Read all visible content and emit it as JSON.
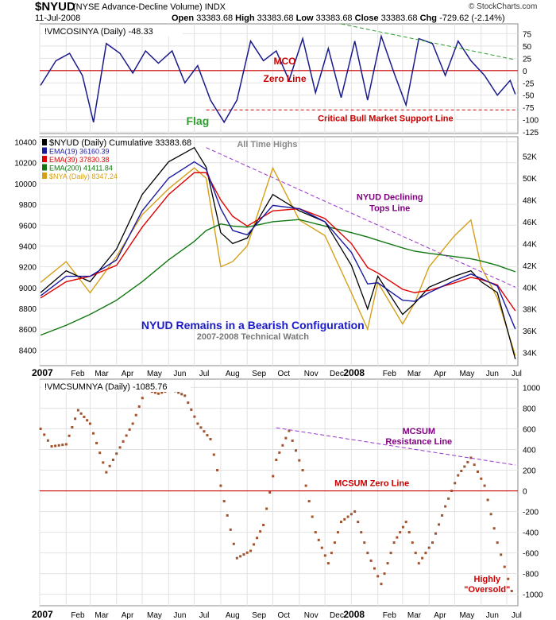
{
  "header": {
    "symbol": "$NYUD",
    "description": "(NYSE Advance-Decline Volume) INDX",
    "date": "11-Jul-2008",
    "open_label": "Open",
    "open": "33383.68",
    "high_label": "High",
    "high": "33383.68",
    "low_label": "Low",
    "low": "33383.68",
    "close_label": "Close",
    "close": "33383.68",
    "chg_label": "Chg",
    "chg": "-729.62 (-2.14%)",
    "credit": "© StockCharts.com"
  },
  "colors": {
    "mco": "#1a1a8c",
    "ema19": "#1a1aa0",
    "ema39": "#e00000",
    "ema200": "#117711",
    "nyud": "#000000",
    "nya": "#d4a017",
    "mcsum": "#a0522d",
    "zero": "#cc0000",
    "trend_green": "#2e9e2e",
    "trend_purple": "#9932cc",
    "annot_red": "#cc0000",
    "annot_blue": "#1a1acc",
    "annot_gray": "#777777"
  },
  "chart_data": [
    {
      "type": "line",
      "panel": "top",
      "legend": "!VMCOSINYA (Daily) -48.33",
      "yticks": [
        75,
        50,
        25,
        0,
        -25,
        -50,
        -75,
        -100,
        -125
      ],
      "ylim": [
        -128,
        95
      ],
      "x": [
        "2007-01-02",
        "2007-01-20",
        "2007-02-05",
        "2007-02-20",
        "2007-03-05",
        "2007-03-20",
        "2007-04-05",
        "2007-04-20",
        "2007-05-05",
        "2007-05-20",
        "2007-06-05",
        "2007-06-20",
        "2007-07-05",
        "2007-07-20",
        "2007-08-05",
        "2007-08-20",
        "2007-09-05",
        "2007-09-20",
        "2007-10-05",
        "2007-10-20",
        "2007-11-05",
        "2007-11-20",
        "2007-12-05",
        "2007-12-20",
        "2008-01-05",
        "2008-01-20",
        "2008-02-05",
        "2008-02-20",
        "2008-03-05",
        "2008-03-20",
        "2008-04-05",
        "2008-04-20",
        "2008-05-05",
        "2008-05-20",
        "2008-06-05",
        "2008-06-20",
        "2008-07-05",
        "2008-07-11"
      ],
      "values": [
        -30,
        20,
        35,
        -10,
        -105,
        55,
        35,
        -5,
        40,
        15,
        40,
        -25,
        10,
        -60,
        -105,
        -60,
        60,
        20,
        40,
        -20,
        65,
        -45,
        45,
        -55,
        60,
        -60,
        70,
        -5,
        -70,
        65,
        55,
        -10,
        60,
        20,
        -10,
        -50,
        -20,
        -48
      ],
      "zero_label": "Zero Line",
      "mco_label": "MCO",
      "support_label": "Critical Bull Market Support Line",
      "support_value": -80,
      "flag_label": "Flag",
      "trendline": {
        "x": [
          "2007-12-20",
          "2008-07-11"
        ],
        "y": [
          95,
          22
        ]
      }
    },
    {
      "type": "line",
      "panel": "middle",
      "title": "NYUD Remains in a Bearish Configuration",
      "subtitle": "2007-2008 Technical Watch",
      "all_time_highs_label": "All Time Highs",
      "declining_tops_label1": "NYUD Declining",
      "declining_tops_label2": "Tops Line",
      "left_yticks": [
        10400,
        10200,
        10000,
        9800,
        9600,
        9400,
        9200,
        9000,
        8800,
        8600,
        8400
      ],
      "left_ylim": [
        8250,
        10450
      ],
      "right_yticks": [
        "52K",
        "50K",
        "48K",
        "46K",
        "44K",
        "42K",
        "40K",
        "38K",
        "36K",
        "34K"
      ],
      "right_values": [
        52000,
        50000,
        48000,
        46000,
        44000,
        42000,
        40000,
        38000,
        36000,
        34000
      ],
      "right_ylim": [
        32800,
        53800
      ],
      "legend": [
        {
          "text": "$NYUD (Daily) Cumulative 33383.68",
          "key": "nyud"
        },
        {
          "text": "EMA(19) 36160.39",
          "key": "ema19"
        },
        {
          "text": "EMA(39) 37830.38",
          "key": "ema39"
        },
        {
          "text": "EMA(200) 41411.84",
          "key": "ema200"
        },
        {
          "text": "$NYA (Daily) 8347.24",
          "key": "nya"
        }
      ],
      "x": [
        "2007-01-02",
        "2007-02-01",
        "2007-03-01",
        "2007-04-01",
        "2007-05-01",
        "2007-06-01",
        "2007-07-01",
        "2007-07-15",
        "2007-08-01",
        "2007-08-15",
        "2007-09-01",
        "2007-10-01",
        "2007-11-01",
        "2007-12-01",
        "2008-01-01",
        "2008-01-20",
        "2008-02-01",
        "2008-03-01",
        "2008-03-15",
        "2008-04-01",
        "2008-05-01",
        "2008-05-20",
        "2008-06-01",
        "2008-06-20",
        "2008-07-11"
      ],
      "series": [
        {
          "name": "$NYUD (Daily) Cumulative",
          "key": "nyud",
          "axis": "right",
          "values": [
            39500,
            41500,
            40500,
            43500,
            48500,
            51500,
            52800,
            51000,
            45000,
            44000,
            44500,
            48500,
            47000,
            46000,
            42000,
            38000,
            41000,
            37500,
            38500,
            40000,
            41000,
            41500,
            40500,
            39500,
            33400
          ]
        },
        {
          "name": "EMA(19)",
          "key": "ema19",
          "axis": "right",
          "values": [
            39200,
            41000,
            41000,
            42500,
            47000,
            50000,
            51500,
            50800,
            47200,
            45200,
            44800,
            47500,
            47200,
            46000,
            43200,
            40300,
            40400,
            38800,
            38700,
            39500,
            40600,
            41200,
            40800,
            40100,
            36160
          ]
        },
        {
          "name": "EMA(39)",
          "key": "ema39",
          "axis": "right",
          "values": [
            39000,
            40500,
            41000,
            42000,
            45500,
            48500,
            50500,
            50500,
            48000,
            46500,
            45600,
            47000,
            47200,
            46300,
            44000,
            41800,
            41300,
            39800,
            39500,
            39700,
            40400,
            40900,
            40700,
            40200,
            37830
          ]
        },
        {
          "name": "EMA(200)",
          "key": "ema200",
          "axis": "right",
          "values": [
            35600,
            36500,
            37500,
            38800,
            40500,
            42500,
            44200,
            45200,
            45800,
            45600,
            45500,
            46000,
            46200,
            45600,
            45000,
            44600,
            44300,
            43600,
            43300,
            43100,
            42800,
            42600,
            42400,
            42000,
            41412
          ]
        },
        {
          "name": "$NYA (Daily)",
          "key": "nya",
          "axis": "left",
          "values": [
            9050,
            9250,
            8950,
            9300,
            9700,
            9950,
            10150,
            10050,
            9200,
            9250,
            9400,
            10150,
            9650,
            9500,
            8950,
            8600,
            9050,
            8650,
            8850,
            9200,
            9500,
            9650,
            9200,
            8900,
            8347
          ]
        }
      ],
      "trendline": {
        "x": [
          "2007-07-15",
          "2008-07-11"
        ],
        "y": [
          52800,
          40000
        ]
      }
    },
    {
      "type": "scatter",
      "panel": "bottom",
      "legend": "!VMCSUMNYA (Daily) -1085.76",
      "yticks": [
        1000,
        800,
        600,
        400,
        200,
        0,
        -200,
        -400,
        -600,
        -800,
        -1000
      ],
      "ylim": [
        -1110,
        1080
      ],
      "zero_label": "MCSUM Zero Line",
      "resistance_label1": "MCSUM",
      "resistance_label2": "Resistance Line",
      "oversold_label1": "Highly",
      "oversold_label2": "\"Oversold\"",
      "x": [
        "2007-01-02",
        "2007-01-15",
        "2007-02-01",
        "2007-02-15",
        "2007-03-01",
        "2007-03-20",
        "2007-04-05",
        "2007-04-20",
        "2007-05-05",
        "2007-05-20",
        "2007-06-05",
        "2007-06-20",
        "2007-07-05",
        "2007-07-20",
        "2007-08-05",
        "2007-08-20",
        "2007-09-05",
        "2007-09-20",
        "2007-10-05",
        "2007-10-20",
        "2007-11-05",
        "2007-11-20",
        "2007-12-05",
        "2007-12-20",
        "2008-01-05",
        "2008-01-20",
        "2008-02-05",
        "2008-02-20",
        "2008-03-05",
        "2008-03-20",
        "2008-04-05",
        "2008-04-20",
        "2008-05-05",
        "2008-05-20",
        "2008-06-05",
        "2008-06-20",
        "2008-07-11"
      ],
      "values": [
        600,
        430,
        450,
        780,
        650,
        180,
        420,
        650,
        980,
        940,
        980,
        920,
        650,
        500,
        -100,
        -650,
        -580,
        -330,
        300,
        580,
        200,
        -400,
        -700,
        -300,
        -200,
        -600,
        -900,
        -500,
        -300,
        -700,
        -500,
        -150,
        150,
        320,
        50,
        -500,
        -1085
      ],
      "trendline": {
        "x": [
          "2007-10-05",
          "2008-07-11"
        ],
        "y": [
          610,
          250
        ]
      }
    }
  ],
  "x_axis": {
    "months": [
      "2007",
      "Feb",
      "Mar",
      "Apr",
      "May",
      "Jun",
      "Jul",
      "Aug",
      "Sep",
      "Oct",
      "Nov",
      "Dec",
      "2008",
      "Feb",
      "Mar",
      "Apr",
      "May",
      "Jun",
      "Jul"
    ],
    "bold": [
      true,
      false,
      false,
      false,
      false,
      false,
      false,
      false,
      false,
      false,
      false,
      false,
      true,
      false,
      false,
      false,
      false,
      false,
      false
    ]
  }
}
